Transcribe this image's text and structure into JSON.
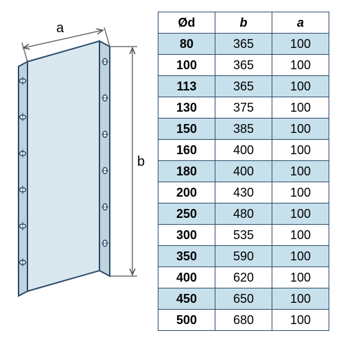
{
  "colors": {
    "border": "#2a4a6a",
    "alt_bg": "#c7e1ec",
    "panel_fill": "#d9e7ee",
    "panel_fill_dark": "#bfd3dd",
    "panel_stroke": "#2a4a6a",
    "dim_line": "#555555"
  },
  "diagram": {
    "label_a": "a",
    "label_b": "b"
  },
  "table": {
    "headers": {
      "od": "Ød",
      "b": "b",
      "a": "a"
    },
    "rows": [
      {
        "od": "80",
        "b": "365",
        "a": "100",
        "alt": true
      },
      {
        "od": "100",
        "b": "365",
        "a": "100",
        "alt": false
      },
      {
        "od": "113",
        "b": "365",
        "a": "100",
        "alt": true
      },
      {
        "od": "130",
        "b": "375",
        "a": "100",
        "alt": false
      },
      {
        "od": "150",
        "b": "385",
        "a": "100",
        "alt": true
      },
      {
        "od": "160",
        "b": "400",
        "a": "100",
        "alt": false
      },
      {
        "od": "180",
        "b": "400",
        "a": "100",
        "alt": true
      },
      {
        "od": "200",
        "b": "430",
        "a": "100",
        "alt": false
      },
      {
        "od": "250",
        "b": "480",
        "a": "100",
        "alt": true
      },
      {
        "od": "300",
        "b": "535",
        "a": "100",
        "alt": false
      },
      {
        "od": "350",
        "b": "590",
        "a": "100",
        "alt": true
      },
      {
        "od": "400",
        "b": "620",
        "a": "100",
        "alt": false
      },
      {
        "od": "450",
        "b": "650",
        "a": "100",
        "alt": true
      },
      {
        "od": "500",
        "b": "680",
        "a": "100",
        "alt": false
      }
    ]
  }
}
